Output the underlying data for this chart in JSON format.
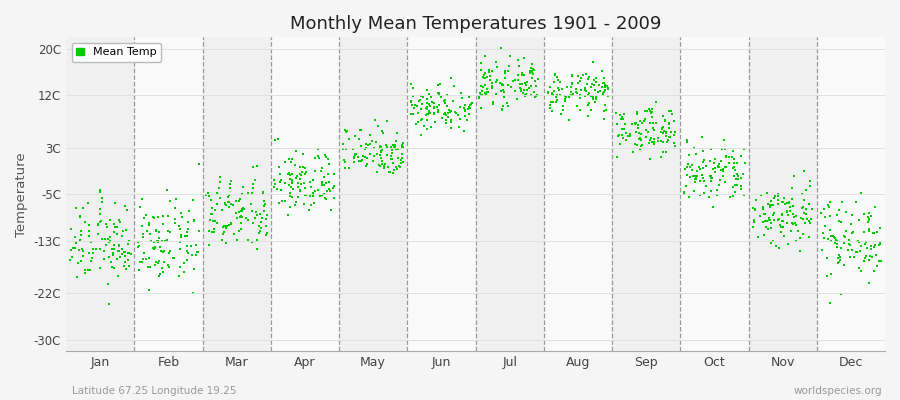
{
  "title": "Monthly Mean Temperatures 1901 - 2009",
  "ylabel": "Temperature",
  "xlabel_months": [
    "Jan",
    "Feb",
    "Mar",
    "Apr",
    "May",
    "Jun",
    "Jul",
    "Aug",
    "Sep",
    "Oct",
    "Nov",
    "Dec"
  ],
  "yticks": [
    -30,
    -22,
    -13,
    -5,
    3,
    12,
    20
  ],
  "ytick_labels": [
    "-30C",
    "-22C",
    "-13C",
    "-5C",
    "3C",
    "12C",
    "20C"
  ],
  "ylim": [
    -32,
    22
  ],
  "xlim": [
    0,
    12
  ],
  "dot_color": "#00cc00",
  "dot_size": 3,
  "legend_label": "Mean Temp",
  "footer_left": "Latitude 67.25 Longitude 19.25",
  "footer_right": "worldspecies.org",
  "monthly_means": [
    -13.5,
    -13.5,
    -8.5,
    -3.0,
    2.5,
    10.0,
    14.0,
    12.5,
    6.0,
    -1.5,
    -8.5,
    -12.5
  ],
  "monthly_stds": [
    3.5,
    3.5,
    3.2,
    2.8,
    2.2,
    2.0,
    1.8,
    1.8,
    2.0,
    2.8,
    3.0,
    3.5
  ],
  "n_years": 109,
  "stripe_colors": [
    "#f0f0f0",
    "#fafafa"
  ],
  "fig_bg": "#f5f5f5"
}
